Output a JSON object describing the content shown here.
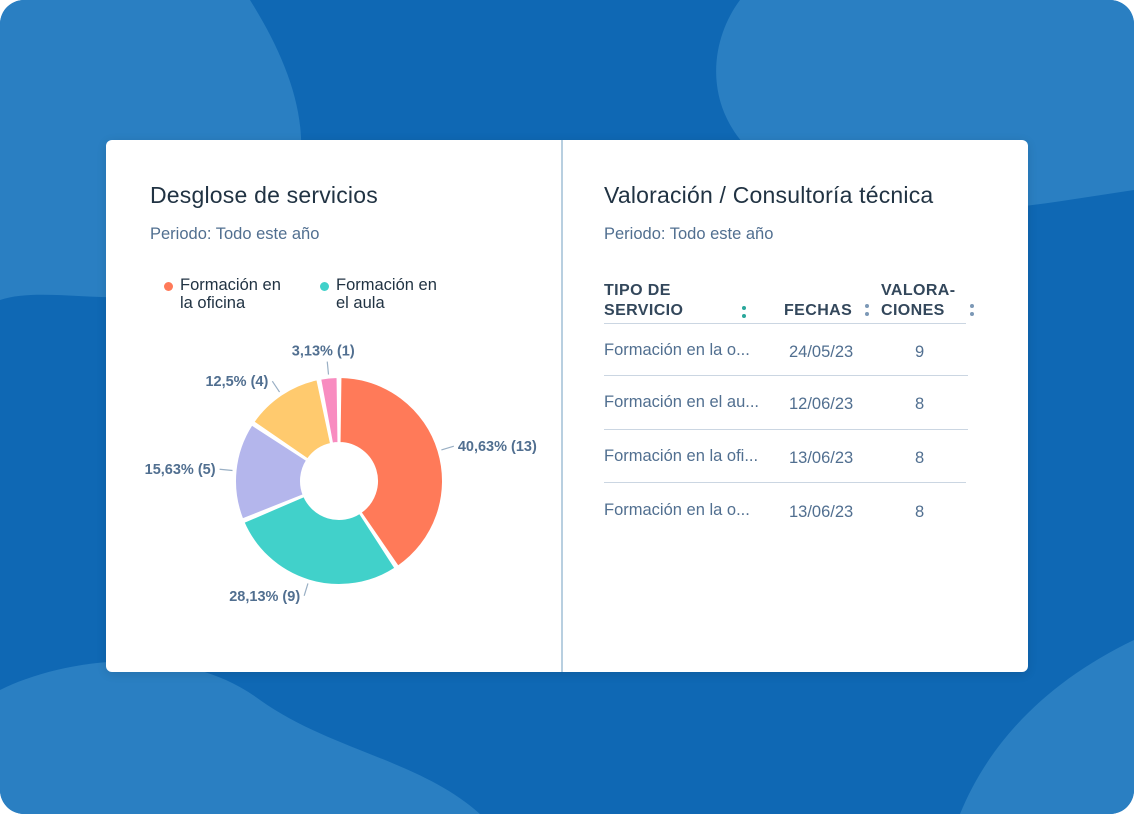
{
  "colors": {
    "background": "#0f68b4",
    "accent": "#2aa79b",
    "slice_1": "#ff7a59",
    "slice_2": "#41d1ca",
    "slice_3": "#b4b6ec",
    "slice_4": "#ffca6e",
    "slice_5": "#f88cc0"
  },
  "left_panel": {
    "title": "Desglose de servicios",
    "period": "Periodo: Todo este año",
    "legend": [
      {
        "label": "Formación en la oficina",
        "color": "#ff7a59",
        "line1": "Formación en",
        "line2": "la oficina"
      },
      {
        "label": "Formación en el aula",
        "color": "#41d1ca",
        "line1": "Formación en",
        "line2": "el aula"
      }
    ]
  },
  "chart_data": {
    "type": "pie",
    "title": "Desglose de servicios",
    "slices": [
      {
        "label": "40,63% (13)",
        "value": 13,
        "percent": 40.63,
        "color": "#ff7a59"
      },
      {
        "label": "28,13% (9)",
        "value": 9,
        "percent": 28.13,
        "color": "#41d1ca"
      },
      {
        "label": "15,63% (5)",
        "value": 5,
        "percent": 15.63,
        "color": "#b4b6ec"
      },
      {
        "label": "12,5% (4)",
        "value": 4,
        "percent": 12.5,
        "color": "#ffca6e"
      },
      {
        "label": "3,13% (1)",
        "value": 1,
        "percent": 3.13,
        "color": "#f88cc0"
      }
    ]
  },
  "right_panel": {
    "title": "Valoración / Consultoría técnica",
    "period": "Periodo: Todo este año",
    "table": {
      "headers": {
        "tipo_line1": "TIPO DE",
        "tipo_line2": "SERVICIO",
        "fechas": "FECHAS",
        "valor_line1": "VALORA-",
        "valor_line2": "CIONES"
      },
      "rows": [
        {
          "tipo": "Formación en la o...",
          "fecha": "24/05/23",
          "valoraciones": "9"
        },
        {
          "tipo": "Formación en el au...",
          "fecha": "12/06/23",
          "valoraciones": "8"
        },
        {
          "tipo": "Formación en la ofi...",
          "fecha": "13/06/23",
          "valoraciones": "8"
        },
        {
          "tipo": "Formación en la o...",
          "fecha": "13/06/23",
          "valoraciones": "8"
        }
      ]
    }
  }
}
